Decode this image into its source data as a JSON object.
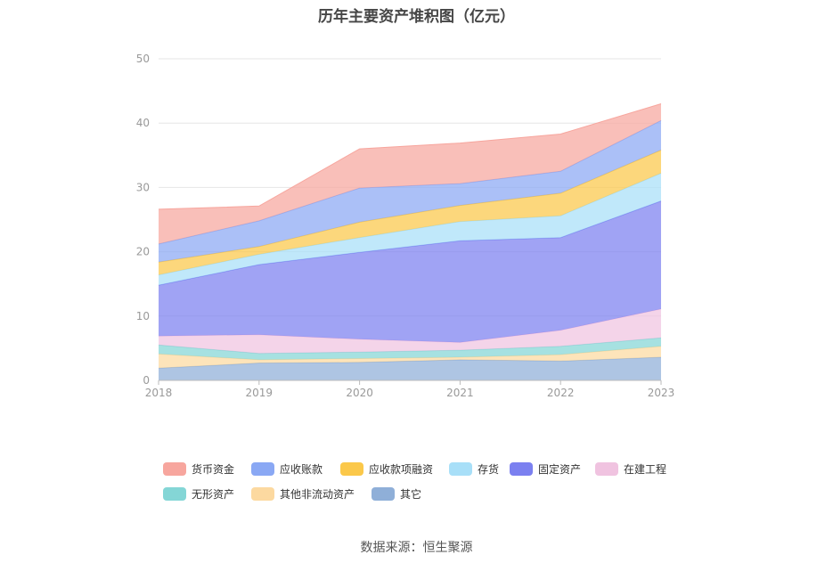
{
  "chart_data": {
    "type": "area",
    "stacked": true,
    "title": "历年主要资产堆积图（亿元）",
    "x": [
      "2018",
      "2019",
      "2020",
      "2021",
      "2022",
      "2023"
    ],
    "ylim": [
      0,
      50
    ],
    "yticks": [
      0,
      10,
      20,
      30,
      40,
      50
    ],
    "grid": true,
    "legend_position": "bottom",
    "series": [
      {
        "name": "其它",
        "color": "#8fafd8",
        "values": [
          1.9,
          2.7,
          2.8,
          3.2,
          3.0,
          3.6
        ]
      },
      {
        "name": "其他非流动资产",
        "color": "#fcd9a0",
        "values": [
          2.2,
          0.5,
          0.6,
          0.4,
          1.0,
          1.7
        ]
      },
      {
        "name": "无形资产",
        "color": "#84d6d6",
        "values": [
          1.4,
          1.0,
          1.0,
          1.1,
          1.3,
          1.3
        ]
      },
      {
        "name": "在建工程",
        "color": "#f0c3e0",
        "values": [
          1.4,
          2.9,
          2.0,
          1.2,
          2.5,
          4.5
        ]
      },
      {
        "name": "固定资产",
        "color": "#7b80f0",
        "values": [
          7.9,
          10.9,
          13.5,
          15.8,
          14.4,
          16.8
        ]
      },
      {
        "name": "存货",
        "color": "#a8dff8",
        "values": [
          1.6,
          1.6,
          2.3,
          3.0,
          3.4,
          4.3
        ]
      },
      {
        "name": "应收款项融资",
        "color": "#fbc84a",
        "values": [
          2.0,
          1.2,
          2.4,
          2.5,
          3.5,
          3.6
        ]
      },
      {
        "name": "应收账款",
        "color": "#8aa8f4",
        "values": [
          2.8,
          4.0,
          5.3,
          3.4,
          3.4,
          4.6
        ]
      },
      {
        "name": "货币资金",
        "color": "#f7a69e",
        "values": [
          5.4,
          2.3,
          6.1,
          6.3,
          5.8,
          2.6
        ]
      }
    ]
  },
  "legend_order": [
    "货币资金",
    "应收账款",
    "应收款项融资",
    "存货",
    "固定资产",
    "在建工程",
    "无形资产",
    "其他非流动资产",
    "其它"
  ],
  "source": "数据来源：恒生聚源"
}
